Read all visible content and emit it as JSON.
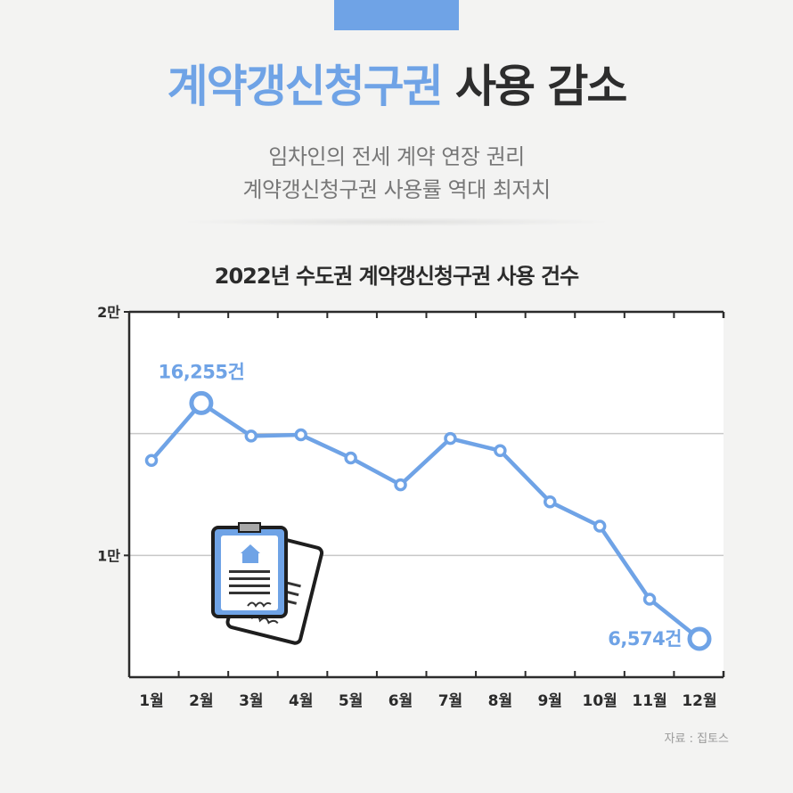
{
  "header": {
    "title_highlight": "계약갱신청구권",
    "title_rest": " 사용 감소",
    "subtitle_line1": "임차인의 전세 계약 연장 권리",
    "subtitle_line2": "계약갱신청구권 사용률 역대 최저치"
  },
  "colors": {
    "accent": "#6fa3e6",
    "text_dark": "#2d2d2d",
    "subtitle": "#777777",
    "gridline": "#c8c8c8"
  },
  "chart_data": {
    "type": "line",
    "title": "2022년 수도권 계약갱신청구권 사용 건수",
    "categories": [
      "1월",
      "2월",
      "3월",
      "4월",
      "5월",
      "6월",
      "7월",
      "8월",
      "9월",
      "10월",
      "11월",
      "12월"
    ],
    "values": [
      13900,
      16255,
      14900,
      14950,
      14000,
      12900,
      14800,
      14300,
      12200,
      11200,
      8200,
      6574
    ],
    "ylim": [
      5000,
      20000
    ],
    "yticks": [
      {
        "value": 10000,
        "label": "1만"
      },
      {
        "value": 20000,
        "label": "2만"
      }
    ],
    "annotations": [
      {
        "index": 1,
        "label": "16,255건"
      },
      {
        "index": 11,
        "label": "6,574건"
      }
    ],
    "grid": true
  },
  "illustration": {
    "icon": "contract-documents-icon"
  },
  "source": "자료 : 집토스"
}
